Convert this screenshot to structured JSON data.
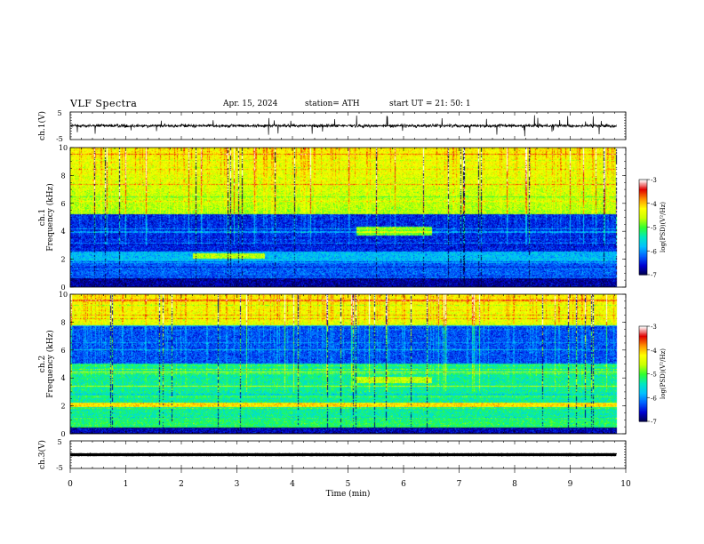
{
  "header": {
    "title": "VLF  Spectra",
    "date": "Apr. 15, 2024",
    "station": "station= ATH",
    "start": "start  UT  =    21: 50: 1"
  },
  "chart_data": [
    {
      "type": "line",
      "panel": "ch1-waveform",
      "ylabel": "ch.1(V)",
      "ylim": [
        -5,
        5
      ],
      "yticks": [
        "5",
        "-5"
      ],
      "description_series": "noisy waveform centered near 0 V with frequent spikes",
      "x_range": [
        0,
        10
      ]
    },
    {
      "type": "heatmap",
      "panel": "ch1-spectrogram",
      "ylabel": "ch.1\nFrequency  (kHz)",
      "ylabel_line1": "ch.1",
      "ylabel_line2": "Frequency  (kHz)",
      "ylim": [
        0,
        10
      ],
      "yticks": [
        "0",
        "2",
        "4",
        "6",
        "8",
        "10"
      ],
      "x_range": [
        0,
        10
      ],
      "data_end_min": 9.83,
      "colorbar": {
        "label": "log(PSD)(V²/Hz)",
        "range": [
          -7,
          -3
        ],
        "ticks": [
          "-3",
          "-4",
          "-5",
          "-6",
          "-7"
        ]
      },
      "features": {
        "low_psd_band_khz": [
          2.5,
          5
        ],
        "enhanced_band_khz": [
          3.7,
          4.3
        ],
        "enhanced_band_min": [
          5.15,
          6.5
        ]
      }
    },
    {
      "type": "heatmap",
      "panel": "ch2-spectrogram",
      "ylabel_line1": "ch.2",
      "ylabel_line2": "Frequency  (kHz)",
      "ylim": [
        0,
        10
      ],
      "yticks": [
        "0",
        "2",
        "4",
        "6",
        "8",
        "10"
      ],
      "x_range": [
        0,
        10
      ],
      "data_end_min": 9.83,
      "colorbar": {
        "label": "log(PSD)(V²/Hz)",
        "range": [
          -7,
          -3
        ],
        "ticks": [
          "-3",
          "-4",
          "-5",
          "-6",
          "-7"
        ]
      },
      "features": {
        "low_psd_band_khz": [
          5,
          8
        ],
        "enhanced_band_khz": [
          3.6,
          4.1
        ],
        "enhanced_band_min": [
          5.15,
          6.5
        ]
      }
    },
    {
      "type": "line",
      "panel": "ch3-waveform",
      "ylabel": "ch.3(V)",
      "ylim": [
        -5,
        5
      ],
      "yticks": [
        "5",
        "-5"
      ],
      "x_range": [
        0,
        10
      ],
      "level_v": 0
    }
  ],
  "xaxis": {
    "label": "Time  (min)",
    "ticks": [
      "0",
      "1",
      "2",
      "3",
      "4",
      "5",
      "6",
      "7",
      "8",
      "9",
      "10"
    ]
  },
  "colors": {
    "colormap": [
      "#00004a",
      "#0000d0",
      "#0060ff",
      "#00c0ff",
      "#00e8c0",
      "#30ff30",
      "#c8ff00",
      "#ffff00",
      "#ff9000",
      "#e00000",
      "#ffffff"
    ]
  }
}
